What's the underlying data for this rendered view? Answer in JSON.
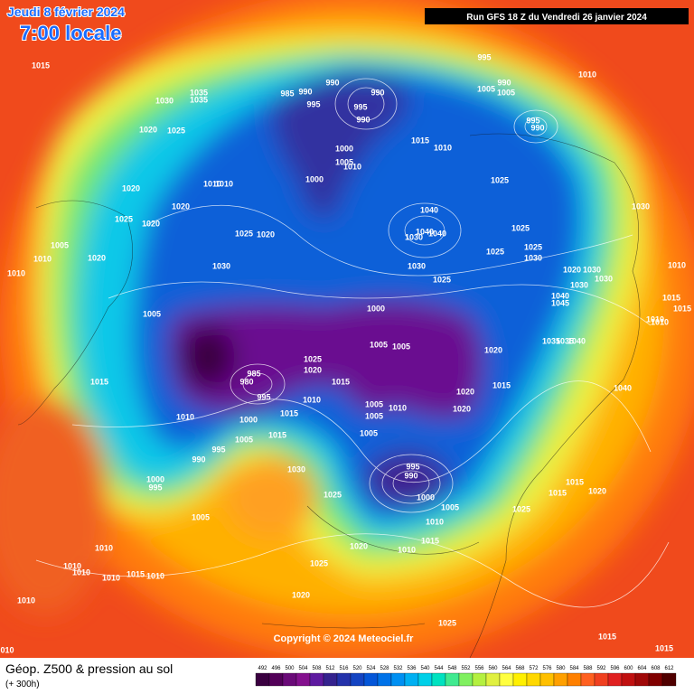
{
  "header": {
    "date": "Jeudi 8 février 2024",
    "time": "7:00 locale",
    "run": "Run GFS 18 Z du Vendredi 26 janvier 2024"
  },
  "copyright": "Copyright © 2024 Meteociel.fr",
  "footer": {
    "title": "Géop. Z500 & pression au sol",
    "lead": "(+ 300h)"
  },
  "pressure_labels": [
    1015,
    1035,
    1035,
    1030,
    985,
    990,
    990,
    995,
    990,
    995,
    990,
    995,
    990,
    1005,
    1005,
    1010,
    995,
    990,
    1020,
    1025,
    1015,
    1010,
    1000,
    1005,
    1010,
    1000,
    1025,
    1020,
    1010,
    1010,
    1020,
    1040,
    1030,
    1025,
    1020,
    1040,
    1040,
    1030,
    1025,
    1020,
    1025,
    1025,
    1030,
    1005,
    1010,
    1020,
    1030,
    1025,
    1030,
    1025,
    1020,
    1030,
    1030,
    1010,
    1010,
    1030,
    1040,
    1045,
    1015,
    1015,
    1005,
    1000,
    1005,
    1005,
    1010,
    1010,
    1035,
    1035,
    1040,
    1020,
    1025,
    1020,
    1015,
    985,
    980,
    995,
    1010,
    1015,
    1015,
    1020,
    1040,
    1005,
    1010,
    1005,
    1020,
    1010,
    1000,
    1015,
    1015,
    1005,
    1005,
    995,
    990,
    995,
    990,
    1000,
    995,
    1030,
    1000,
    1025,
    1005,
    1015,
    1015,
    1020,
    1025,
    1005,
    1010,
    1015,
    1020,
    1010,
    1010,
    1010,
    1010,
    1010,
    1015,
    1010,
    1025,
    1020,
    1010,
    1025,
    1015,
    1015,
    "010"
  ],
  "colorbar": {
    "ticks": [
      492,
      496,
      500,
      504,
      508,
      512,
      516,
      520,
      524,
      528,
      532,
      536,
      540,
      544,
      548,
      552,
      556,
      560,
      564,
      568,
      572,
      576,
      580,
      584,
      588,
      592,
      596,
      600,
      604,
      608,
      612
    ],
    "colors": [
      "#3a0040",
      "#520058",
      "#6a0a78",
      "#84108e",
      "#5e1aa0",
      "#34228e",
      "#2432aa",
      "#1444c2",
      "#0456d8",
      "#0072e8",
      "#0090f2",
      "#00b0f2",
      "#00d0e8",
      "#00e2c0",
      "#40ea90",
      "#80f060",
      "#b4f040",
      "#e0f040",
      "#ffff40",
      "#fff000",
      "#ffd800",
      "#ffc000",
      "#ffa000",
      "#ff8000",
      "#ff6020",
      "#f04020",
      "#e02020",
      "#c01010",
      "#a00808",
      "#800000",
      "#500000"
    ]
  }
}
